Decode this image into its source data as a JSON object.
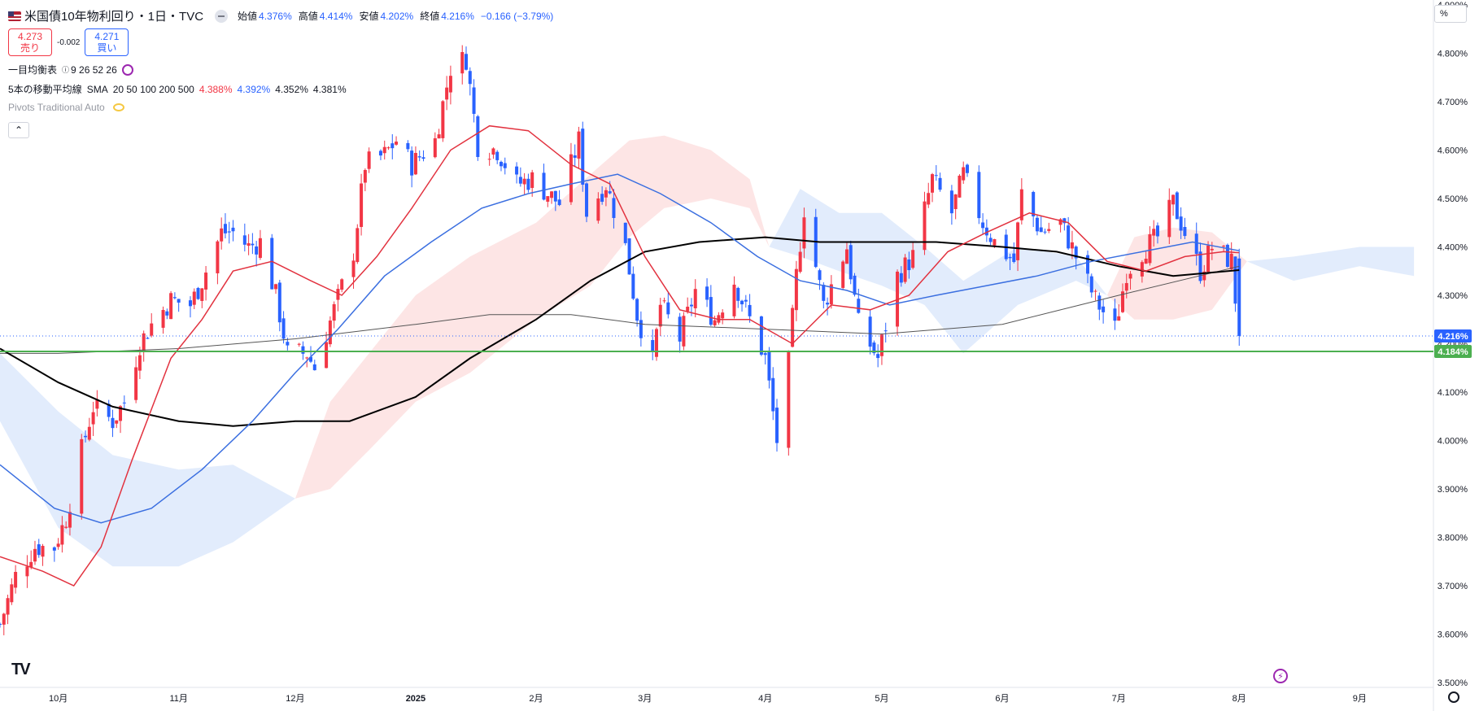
{
  "header": {
    "symbol_title": "米国債10年物利回り・1日・TVC",
    "ohlc": [
      {
        "label": "始値",
        "value": "4.376%"
      },
      {
        "label": "高値",
        "value": "4.414%"
      },
      {
        "label": "安値",
        "value": "4.202%"
      },
      {
        "label": "終値",
        "value": "4.216%"
      }
    ],
    "change": "−0.166 (−3.79%)",
    "sell_price": "4.273",
    "sell_label": "売り",
    "spread": "-0.002",
    "buy_price": "4.271",
    "buy_label": "買い",
    "unit_label": "%"
  },
  "indicators": {
    "ichimoku": {
      "name": "一目均衡表",
      "params": "9 26 52 26"
    },
    "sma": {
      "name": "5本の移動平均線",
      "type": "SMA",
      "periods": "20 50 100 200 500",
      "values": [
        {
          "text": "4.388%",
          "color": "#f23645"
        },
        {
          "text": "4.392%",
          "color": "#2962ff"
        },
        {
          "text": "4.352%",
          "color": "#131722"
        },
        {
          "text": "4.381%",
          "color": "#131722"
        }
      ]
    },
    "pivots": {
      "name": "Pivots Traditional Auto"
    }
  },
  "colors": {
    "up": "#f23645",
    "down": "#2962ff",
    "sma20": "#e2323f",
    "sma50": "#3b6fe0",
    "sma100": "#000000",
    "sma200": "#555555",
    "hline": "#4caf50",
    "cloud_bull": "#fde0e0",
    "cloud_bear": "#dde9fb"
  },
  "chart_data": {
    "type": "candlestick",
    "title": "米国債10年物利回り・1日・TVC",
    "y_ticks": [
      "4.900%",
      "4.800%",
      "4.700%",
      "4.600%",
      "4.500%",
      "4.400%",
      "4.300%",
      "4.200%",
      "4.100%",
      "4.000%",
      "3.900%",
      "3.800%",
      "3.700%",
      "3.600%",
      "3.500%"
    ],
    "ylim": [
      3.49,
      4.91
    ],
    "x_ticks": [
      {
        "label": "10月",
        "date": "2024-10-01"
      },
      {
        "label": "11月",
        "date": "2024-11-01"
      },
      {
        "label": "12月",
        "date": "2024-12-01"
      },
      {
        "label": "2025",
        "date": "2025-01-01"
      },
      {
        "label": "2月",
        "date": "2025-02-01"
      },
      {
        "label": "3月",
        "date": "2025-03-01"
      },
      {
        "label": "4月",
        "date": "2025-04-01"
      },
      {
        "label": "5月",
        "date": "2025-05-01"
      },
      {
        "label": "6月",
        "date": "2025-06-01"
      },
      {
        "label": "7月",
        "date": "2025-07-01"
      },
      {
        "label": "8月",
        "date": "2025-08-01"
      },
      {
        "label": "9月",
        "date": "2025-09-01"
      }
    ],
    "price_labels": [
      {
        "value": 4.216,
        "text": "4.216%",
        "color": "#2962ff"
      },
      {
        "value": 4.184,
        "text": "4.184%",
        "color": "#4caf50"
      }
    ],
    "horizontal_line": 4.184,
    "last_price": 4.216,
    "close_path": [
      [
        "2024-09-16",
        3.62
      ],
      [
        "2024-09-20",
        3.72
      ],
      [
        "2024-09-25",
        3.78
      ],
      [
        "2024-09-30",
        3.78
      ],
      [
        "2024-10-03",
        3.84
      ],
      [
        "2024-10-07",
        3.98
      ],
      [
        "2024-10-10",
        4.07
      ],
      [
        "2024-10-15",
        4.04
      ],
      [
        "2024-10-18",
        4.08
      ],
      [
        "2024-10-22",
        4.2
      ],
      [
        "2024-10-25",
        4.24
      ],
      [
        "2024-10-30",
        4.29
      ],
      [
        "2024-11-04",
        4.28
      ],
      [
        "2024-11-07",
        4.33
      ],
      [
        "2024-11-12",
        4.43
      ],
      [
        "2024-11-15",
        4.43
      ],
      [
        "2024-11-19",
        4.4
      ],
      [
        "2024-11-22",
        4.41
      ],
      [
        "2024-11-26",
        4.3
      ],
      [
        "2024-11-29",
        4.18
      ],
      [
        "2024-12-04",
        4.18
      ],
      [
        "2024-12-06",
        4.15
      ],
      [
        "2024-12-11",
        4.27
      ],
      [
        "2024-12-16",
        4.39
      ],
      [
        "2024-12-19",
        4.57
      ],
      [
        "2024-12-24",
        4.59
      ],
      [
        "2024-12-27",
        4.62
      ],
      [
        "2024-12-31",
        4.57
      ],
      [
        "2025-01-06",
        4.62
      ],
      [
        "2025-01-10",
        4.77
      ],
      [
        "2025-01-14",
        4.79
      ],
      [
        "2025-01-17",
        4.61
      ],
      [
        "2025-01-22",
        4.6
      ],
      [
        "2025-01-27",
        4.53
      ],
      [
        "2025-01-31",
        4.54
      ],
      [
        "2025-02-04",
        4.51
      ],
      [
        "2025-02-07",
        4.49
      ],
      [
        "2025-02-12",
        4.62
      ],
      [
        "2025-02-14",
        4.47
      ],
      [
        "2025-02-19",
        4.53
      ],
      [
        "2025-02-24",
        4.4
      ],
      [
        "2025-02-27",
        4.26
      ],
      [
        "2025-03-03",
        4.16
      ],
      [
        "2025-03-05",
        4.28
      ],
      [
        "2025-03-10",
        4.21
      ],
      [
        "2025-03-14",
        4.31
      ],
      [
        "2025-03-19",
        4.25
      ],
      [
        "2025-03-24",
        4.33
      ],
      [
        "2025-03-28",
        4.25
      ],
      [
        "2025-04-01",
        4.17
      ],
      [
        "2025-04-04",
        4.0
      ],
      [
        "2025-04-07",
        4.16
      ],
      [
        "2025-04-09",
        4.34
      ],
      [
        "2025-04-11",
        4.48
      ],
      [
        "2025-04-16",
        4.28
      ],
      [
        "2025-04-22",
        4.4
      ],
      [
        "2025-04-25",
        4.24
      ],
      [
        "2025-04-30",
        4.17
      ],
      [
        "2025-05-05",
        4.34
      ],
      [
        "2025-05-09",
        4.38
      ],
      [
        "2025-05-14",
        4.54
      ],
      [
        "2025-05-19",
        4.47
      ],
      [
        "2025-05-22",
        4.55
      ],
      [
        "2025-05-27",
        4.45
      ],
      [
        "2025-05-30",
        4.41
      ],
      [
        "2025-06-04",
        4.37
      ],
      [
        "2025-06-06",
        4.51
      ],
      [
        "2025-06-11",
        4.43
      ],
      [
        "2025-06-16",
        4.45
      ],
      [
        "2025-06-20",
        4.38
      ],
      [
        "2025-06-25",
        4.29
      ],
      [
        "2025-06-30",
        4.23
      ],
      [
        "2025-07-03",
        4.35
      ],
      [
        "2025-07-08",
        4.4
      ],
      [
        "2025-07-11",
        4.42
      ],
      [
        "2025-07-15",
        4.49
      ],
      [
        "2025-07-18",
        4.43
      ],
      [
        "2025-07-22",
        4.35
      ],
      [
        "2025-07-25",
        4.4
      ],
      [
        "2025-07-30",
        4.37
      ],
      [
        "2025-08-01",
        4.216
      ]
    ],
    "sma20": [
      [
        "2024-09-16",
        3.76
      ],
      [
        "2024-09-27",
        3.73
      ],
      [
        "2024-10-05",
        3.7
      ],
      [
        "2024-10-12",
        3.78
      ],
      [
        "2024-10-20",
        3.96
      ],
      [
        "2024-10-30",
        4.17
      ],
      [
        "2024-11-07",
        4.25
      ],
      [
        "2024-11-15",
        4.35
      ],
      [
        "2024-11-25",
        4.37
      ],
      [
        "2024-12-05",
        4.33
      ],
      [
        "2024-12-13",
        4.3
      ],
      [
        "2024-12-22",
        4.38
      ],
      [
        "2024-12-31",
        4.48
      ],
      [
        "2025-01-10",
        4.6
      ],
      [
        "2025-01-20",
        4.65
      ],
      [
        "2025-01-30",
        4.64
      ],
      [
        "2025-02-10",
        4.57
      ],
      [
        "2025-02-20",
        4.53
      ],
      [
        "2025-03-01",
        4.38
      ],
      [
        "2025-03-10",
        4.27
      ],
      [
        "2025-03-20",
        4.25
      ],
      [
        "2025-03-28",
        4.25
      ],
      [
        "2025-04-08",
        4.2
      ],
      [
        "2025-04-18",
        4.28
      ],
      [
        "2025-04-28",
        4.27
      ],
      [
        "2025-05-08",
        4.3
      ],
      [
        "2025-05-18",
        4.39
      ],
      [
        "2025-05-28",
        4.43
      ],
      [
        "2025-06-08",
        4.47
      ],
      [
        "2025-06-18",
        4.45
      ],
      [
        "2025-06-28",
        4.37
      ],
      [
        "2025-07-08",
        4.35
      ],
      [
        "2025-07-18",
        4.38
      ],
      [
        "2025-07-28",
        4.39
      ],
      [
        "2025-08-01",
        4.388
      ]
    ],
    "sma50": [
      [
        "2024-09-16",
        3.95
      ],
      [
        "2024-09-30",
        3.86
      ],
      [
        "2024-10-12",
        3.83
      ],
      [
        "2024-10-25",
        3.86
      ],
      [
        "2024-11-07",
        3.94
      ],
      [
        "2024-11-20",
        4.04
      ],
      [
        "2024-12-01",
        4.14
      ],
      [
        "2024-12-12",
        4.23
      ],
      [
        "2024-12-24",
        4.34
      ],
      [
        "2025-01-05",
        4.41
      ],
      [
        "2025-01-18",
        4.48
      ],
      [
        "2025-01-30",
        4.51
      ],
      [
        "2025-02-10",
        4.53
      ],
      [
        "2025-02-22",
        4.55
      ],
      [
        "2025-03-05",
        4.51
      ],
      [
        "2025-03-18",
        4.45
      ],
      [
        "2025-03-30",
        4.38
      ],
      [
        "2025-04-10",
        4.33
      ],
      [
        "2025-04-22",
        4.31
      ],
      [
        "2025-05-03",
        4.28
      ],
      [
        "2025-05-15",
        4.3
      ],
      [
        "2025-05-28",
        4.32
      ],
      [
        "2025-06-10",
        4.34
      ],
      [
        "2025-06-24",
        4.37
      ],
      [
        "2025-07-07",
        4.39
      ],
      [
        "2025-07-20",
        4.41
      ],
      [
        "2025-08-01",
        4.392
      ]
    ],
    "sma100": [
      [
        "2024-09-16",
        4.19
      ],
      [
        "2024-10-01",
        4.12
      ],
      [
        "2024-10-15",
        4.07
      ],
      [
        "2024-11-01",
        4.04
      ],
      [
        "2024-11-15",
        4.03
      ],
      [
        "2024-12-01",
        4.04
      ],
      [
        "2024-12-15",
        4.04
      ],
      [
        "2025-01-01",
        4.09
      ],
      [
        "2025-01-15",
        4.17
      ],
      [
        "2025-02-01",
        4.25
      ],
      [
        "2025-02-15",
        4.33
      ],
      [
        "2025-03-01",
        4.39
      ],
      [
        "2025-03-15",
        4.41
      ],
      [
        "2025-04-01",
        4.42
      ],
      [
        "2025-04-15",
        4.41
      ],
      [
        "2025-05-01",
        4.41
      ],
      [
        "2025-05-15",
        4.41
      ],
      [
        "2025-06-01",
        4.4
      ],
      [
        "2025-06-15",
        4.39
      ],
      [
        "2025-07-01",
        4.36
      ],
      [
        "2025-07-15",
        4.34
      ],
      [
        "2025-08-01",
        4.352
      ]
    ],
    "sma200": [
      [
        "2024-09-16",
        4.18
      ],
      [
        "2024-10-01",
        4.18
      ],
      [
        "2024-11-01",
        4.19
      ],
      [
        "2024-12-01",
        4.21
      ],
      [
        "2025-01-01",
        4.24
      ],
      [
        "2025-01-20",
        4.26
      ],
      [
        "2025-02-10",
        4.26
      ],
      [
        "2025-03-01",
        4.24
      ],
      [
        "2025-04-01",
        4.23
      ],
      [
        "2025-05-01",
        4.22
      ],
      [
        "2025-06-01",
        4.24
      ],
      [
        "2025-07-01",
        4.3
      ],
      [
        "2025-08-01",
        4.36
      ]
    ],
    "cloud_bull": [
      [
        "2024-12-01",
        3.88,
        3.88
      ],
      [
        "2024-12-10",
        4.08,
        3.9
      ],
      [
        "2024-12-20",
        4.18,
        3.98
      ],
      [
        "2025-01-01",
        4.3,
        4.08
      ],
      [
        "2025-01-15",
        4.38,
        4.14
      ],
      [
        "2025-02-01",
        4.45,
        4.25
      ],
      [
        "2025-02-15",
        4.55,
        4.32
      ],
      [
        "2025-02-25",
        4.62,
        4.42
      ],
      [
        "2025-03-06",
        4.63,
        4.48
      ],
      [
        "2025-03-18",
        4.6,
        4.5
      ],
      [
        "2025-03-28",
        4.54,
        4.48
      ],
      [
        "2025-04-02",
        4.4,
        4.4
      ],
      [
        "2025-06-28",
        4.3,
        4.3
      ],
      [
        "2025-07-05",
        4.42,
        4.25
      ],
      [
        "2025-07-15",
        4.44,
        4.25
      ],
      [
        "2025-07-25",
        4.43,
        4.27
      ],
      [
        "2025-08-03",
        4.37,
        4.37
      ]
    ],
    "cloud_bear": [
      [
        "2024-09-16",
        4.18,
        4.04
      ],
      [
        "2024-10-01",
        4.06,
        3.82
      ],
      [
        "2024-10-15",
        3.97,
        3.74
      ],
      [
        "2024-11-01",
        3.94,
        3.74
      ],
      [
        "2024-11-15",
        3.95,
        3.79
      ],
      [
        "2024-12-01",
        3.88,
        3.88
      ],
      [
        "2025-04-02",
        4.4,
        4.4
      ],
      [
        "2025-04-10",
        4.52,
        4.38
      ],
      [
        "2025-04-20",
        4.47,
        4.35
      ],
      [
        "2025-05-01",
        4.47,
        4.32
      ],
      [
        "2025-05-12",
        4.4,
        4.28
      ],
      [
        "2025-05-22",
        4.33,
        4.18
      ],
      [
        "2025-06-05",
        4.4,
        4.28
      ],
      [
        "2025-06-20",
        4.38,
        4.33
      ],
      [
        "2025-06-28",
        4.3,
        4.3
      ],
      [
        "2025-08-03",
        4.37,
        4.37
      ],
      [
        "2025-08-15",
        4.38,
        4.33
      ],
      [
        "2025-09-01",
        4.4,
        4.36
      ],
      [
        "2025-09-15",
        4.4,
        4.34
      ]
    ]
  }
}
